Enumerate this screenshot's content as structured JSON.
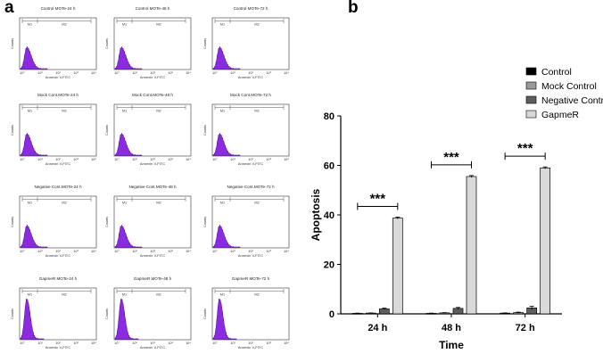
{
  "panel_a": {
    "label": "a",
    "marker_labels": {
      "m1": "M1",
      "m2": "M2"
    },
    "y_axis_label": "Counts",
    "x_axis_label": "Annexin V-FITC",
    "x_ticks": [
      "10°",
      "10¹",
      "10²",
      "10³",
      "10⁴"
    ],
    "histogram_color": "#8a2be2",
    "rows": [
      [
        "Control MOTe-24 h",
        "Control MOTe-48 h",
        "Control MOTe-72 h"
      ],
      [
        "Mock Cont.MOTe-24 h",
        "Mock Cont.MOTe-48 h",
        "Mock Cont.MOTe-72 h"
      ],
      [
        "Negative Cont.MOTe-24 h",
        "Negative Cont.MOTe-48 h",
        "Negative Cont.MOTe-72 h"
      ],
      [
        "GapmeR MOTe-24 h",
        "GapmeR MOTe-48 h",
        "GapmeR MOTe-72 h"
      ]
    ]
  },
  "panel_b": {
    "label": "b",
    "significance": "***"
  },
  "chart_data": {
    "type": "bar",
    "title": "",
    "xlabel": "Time",
    "ylabel": "Apoptosis",
    "ylim": [
      0,
      80
    ],
    "yticks": [
      0,
      20,
      40,
      60,
      80
    ],
    "categories": [
      "24 h",
      "48 h",
      "72 h"
    ],
    "legend_position": "top-right",
    "series": [
      {
        "name": "Control",
        "color": "#000000",
        "values": [
          0.2,
          0.2,
          0.3
        ],
        "errors": [
          0.1,
          0.1,
          0.1
        ]
      },
      {
        "name": "Mock Control",
        "color": "#9a9a9a",
        "values": [
          0.3,
          0.4,
          0.5
        ],
        "errors": [
          0.1,
          0.1,
          0.2
        ]
      },
      {
        "name": "Negative Control",
        "color": "#5e5e5e",
        "values": [
          2.0,
          2.2,
          2.4
        ],
        "errors": [
          0.3,
          0.4,
          0.7
        ]
      },
      {
        "name": "GapmeR",
        "color": "#d9d9d9",
        "values": [
          38.7,
          55.5,
          59.0
        ],
        "errors": [
          0.4,
          0.4,
          0.4
        ]
      }
    ]
  }
}
